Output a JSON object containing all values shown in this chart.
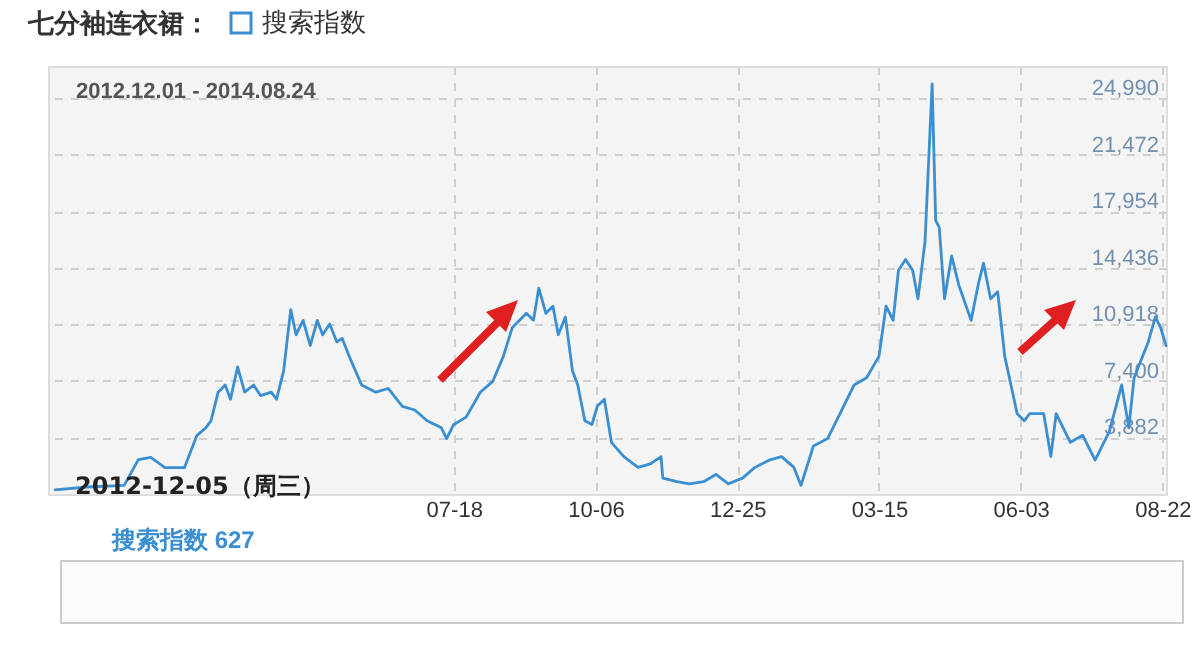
{
  "chart_data": {
    "type": "line",
    "title": "七分袖连衣裙：",
    "subtitle": "2012.12.01 - 2014.08.24",
    "annotations": [
      {
        "text": "2012-12-05（周三）",
        "x": "2012-12-05",
        "y": 627
      },
      "搜索指数 627"
    ],
    "xlim": [
      "2012-12-01",
      "2014-08-24"
    ],
    "xticks": [
      {
        "value": "2013-07-18",
        "label": "07-18"
      },
      {
        "value": "2013-10-06",
        "label": "10-06"
      },
      {
        "value": "2013-12-25",
        "label": "12-25"
      },
      {
        "value": "2014-03-15",
        "label": "03-15"
      },
      {
        "value": "2014-06-03",
        "label": "06-03"
      },
      {
        "value": "2014-08-22",
        "label": "08-22"
      }
    ],
    "ylim": [
      364,
      27000
    ],
    "yticks": [
      {
        "value": 3882,
        "label": "3,882"
      },
      {
        "value": 7400,
        "label": "7,400"
      },
      {
        "value": 10918,
        "label": "10,918"
      },
      {
        "value": 14436,
        "label": "14,436"
      },
      {
        "value": 17954,
        "label": "17,954"
      },
      {
        "value": 21472,
        "label": "21,472"
      },
      {
        "value": 24990,
        "label": "24,990"
      }
    ],
    "grid": true,
    "legend": "top left",
    "series": [
      {
        "name": "搜索指数",
        "color": "#3b8fd0",
        "x": [
          "2012-12-05",
          "2012-12-23",
          "2013-01-13",
          "2013-01-21",
          "2013-01-28",
          "2013-02-05",
          "2013-02-16",
          "2013-02-23",
          "2013-02-28",
          "2013-03-03",
          "2013-03-07",
          "2013-03-11",
          "2013-03-14",
          "2013-03-18",
          "2013-03-22",
          "2013-03-27",
          "2013-03-31",
          "2013-04-06",
          "2013-04-09",
          "2013-04-13",
          "2013-04-17",
          "2013-04-20",
          "2013-04-24",
          "2013-04-28",
          "2013-05-02",
          "2013-05-05",
          "2013-05-09",
          "2013-05-13",
          "2013-05-16",
          "2013-05-20",
          "2013-05-27",
          "2013-06-04",
          "2013-06-11",
          "2013-06-19",
          "2013-06-26",
          "2013-07-03",
          "2013-07-11",
          "2013-07-14",
          "2013-07-18",
          "2013-07-25",
          "2013-08-02",
          "2013-08-09",
          "2013-08-15",
          "2013-08-20",
          "2013-08-28",
          "2013-09-01",
          "2013-09-04",
          "2013-09-08",
          "2013-09-12",
          "2013-09-15",
          "2013-09-19",
          "2013-09-23",
          "2013-09-26",
          "2013-09-30",
          "2013-10-04",
          "2013-10-07",
          "2013-10-11",
          "2013-10-15",
          "2013-10-22",
          "2013-10-30",
          "2013-11-06",
          "2013-11-12",
          "2013-11-13",
          "2013-11-21",
          "2013-11-28",
          "2013-12-06",
          "2013-12-13",
          "2013-12-20",
          "2013-12-28",
          "2014-01-04",
          "2014-01-12",
          "2014-01-19",
          "2014-01-26",
          "2014-01-30",
          "2014-02-06",
          "2014-02-14",
          "2014-02-21",
          "2014-03-01",
          "2014-03-08",
          "2014-03-15",
          "2014-03-19",
          "2014-03-23",
          "2014-03-26",
          "2014-03-30",
          "2014-04-03",
          "2014-04-06",
          "2014-04-10",
          "2014-04-14",
          "2014-04-16",
          "2014-04-18",
          "2014-04-21",
          "2014-04-25",
          "2014-04-29",
          "2014-05-06",
          "2014-05-10",
          "2014-05-13",
          "2014-05-17",
          "2014-05-21",
          "2014-05-25",
          "2014-06-01",
          "2014-06-05",
          "2014-06-08",
          "2014-06-16",
          "2014-06-20",
          "2014-06-23",
          "2014-07-01",
          "2014-07-08",
          "2014-07-15",
          "2014-07-23",
          "2014-07-30",
          "2014-08-03",
          "2014-08-06",
          "2014-08-14",
          "2014-08-18",
          "2014-08-21",
          "2014-08-24"
        ],
        "values": [
          627,
          800,
          900,
          2500,
          2650,
          2000,
          2000,
          4000,
          4480,
          4920,
          6700,
          7150,
          6260,
          8270,
          6700,
          7150,
          6490,
          6700,
          6260,
          8040,
          11840,
          10270,
          11170,
          9600,
          11170,
          10270,
          10940,
          9830,
          10050,
          8930,
          7150,
          6700,
          6930,
          5820,
          5590,
          4920,
          4480,
          3810,
          4690,
          5150,
          6700,
          7370,
          8930,
          10710,
          11610,
          11170,
          13180,
          11610,
          12050,
          10270,
          11380,
          8040,
          7150,
          4920,
          4690,
          5820,
          6260,
          3580,
          2690,
          2020,
          2240,
          2690,
          1350,
          1130,
          1000,
          1130,
          1580,
          1000,
          1350,
          2020,
          2470,
          2690,
          2020,
          900,
          3350,
          3810,
          5360,
          7150,
          7600,
          8930,
          12050,
          11170,
          14290,
          14960,
          14290,
          12510,
          16070,
          25890,
          17400,
          16960,
          12510,
          15180,
          13390,
          11170,
          13390,
          14730,
          12510,
          12950,
          8930,
          5360,
          4920,
          5360,
          5360,
          2690,
          5360,
          3580,
          4020,
          2470,
          4250,
          7150,
          4480,
          7600,
          9830,
          11380,
          10710,
          9600
        ]
      }
    ]
  }
}
